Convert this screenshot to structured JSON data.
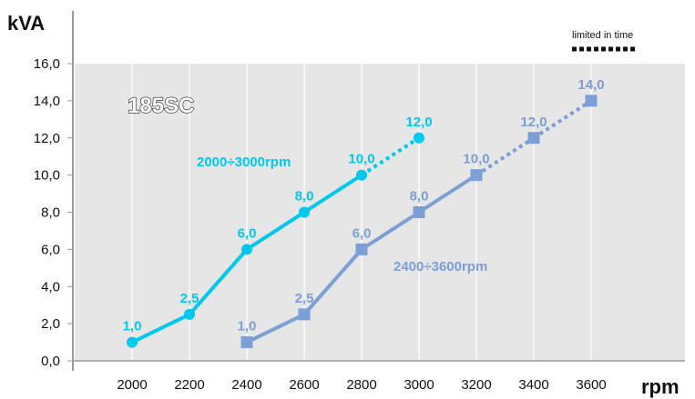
{
  "chart_data": {
    "type": "line",
    "ylabel": "kVA",
    "xlabel": "rpm",
    "model_label": "185SC",
    "legend": {
      "limited_label": "limited in time",
      "placement": "top-right"
    },
    "ylim": [
      0,
      16
    ],
    "y_ticks": [
      "0,0",
      "2,0",
      "4,0",
      "6,0",
      "8,0",
      "10,0",
      "12,0",
      "14,0",
      "16,0"
    ],
    "x_ticks": [
      "2000",
      "2200",
      "2400",
      "2600",
      "2800",
      "3000",
      "3200",
      "3400",
      "3600"
    ],
    "grid": true,
    "series": [
      {
        "name": "2000÷3000rpm",
        "color": "#00c8f0",
        "marker": "circle",
        "x": [
          2000,
          2200,
          2400,
          2600,
          2800,
          3000
        ],
        "y": [
          1.0,
          2.5,
          6.0,
          8.0,
          10.0,
          12.0
        ],
        "labels": [
          "1,0",
          "2,5",
          "6,0",
          "8,0",
          "10,0",
          "12,0"
        ],
        "limited_from_index": 4
      },
      {
        "name": "2400÷3600rpm",
        "color": "#7b9fd6",
        "marker": "square",
        "x": [
          2400,
          2600,
          2800,
          3000,
          3200,
          3400,
          3600
        ],
        "y": [
          1.0,
          2.5,
          6.0,
          8.0,
          10.0,
          12.0,
          14.0
        ],
        "labels": [
          "1,0",
          "2,5",
          "6,0",
          "8,0",
          "10,0",
          "12,0",
          "14,0"
        ],
        "limited_from_index": 4
      }
    ]
  }
}
